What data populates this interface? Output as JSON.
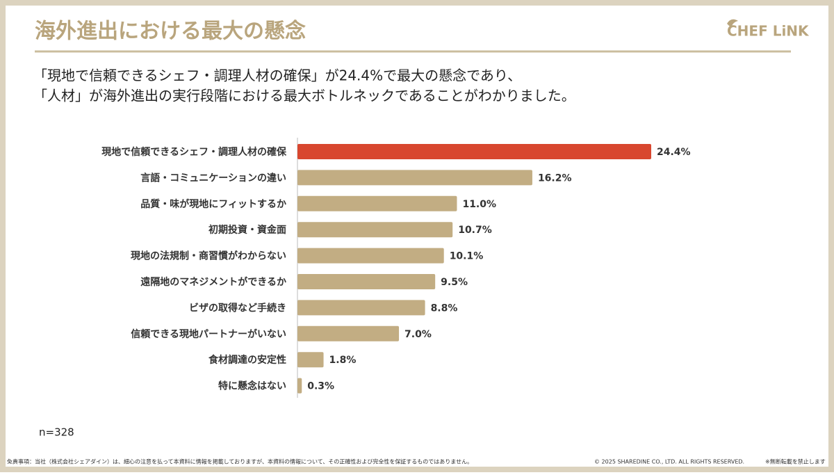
{
  "header": {
    "title": "海外進出における最大の懸念",
    "logo": "CHEF LiNK"
  },
  "description": [
    "「現地で信頼できるシェフ・調理人材の確保」が24.4%で最大の懸念であり、",
    "「人材」が海外進出の実行段階における最大ボトルネックであることがわかりました。"
  ],
  "chart_data": {
    "type": "bar",
    "orientation": "horizontal",
    "categories": [
      "現地で信頼できるシェフ・調理人材の確保",
      "言語・コミュニケーションの違い",
      "品質・味が現地にフィットするか",
      "初期投資・資金面",
      "現地の法規制・商習慣がわからない",
      "遠隔地のマネジメントができるか",
      "ビザの取得など手続き",
      "信頼できる現地パートナーがいない",
      "食材調達の安定性",
      "特に懸念はない"
    ],
    "values": [
      24.4,
      16.2,
      11.0,
      10.7,
      10.1,
      9.5,
      8.8,
      7.0,
      1.8,
      0.3
    ],
    "value_labels": [
      "24.4%",
      "16.2%",
      "11.0%",
      "10.7%",
      "10.1%",
      "9.5%",
      "8.8%",
      "7.0%",
      "1.8%",
      "0.3%"
    ],
    "colors": [
      "#d8472f",
      "#c2ad83",
      "#c2ad83",
      "#c2ad83",
      "#c2ad83",
      "#c2ad83",
      "#c2ad83",
      "#c2ad83",
      "#c2ad83",
      "#c2ad83"
    ]
  },
  "note": "n=328",
  "footer": {
    "disclaimer": "免責事項：当社（株式会社シェアダイン）は、細心の注意を払って本資料に情報を掲載しておりますが、本資料の情報について、その正確性および完全性を保証するものではありません。",
    "copyright": "© 2025 SHAREDINE CO., LTD. ALL RIGHTS RESERVED.",
    "notice": "※無断転載を禁止します"
  }
}
